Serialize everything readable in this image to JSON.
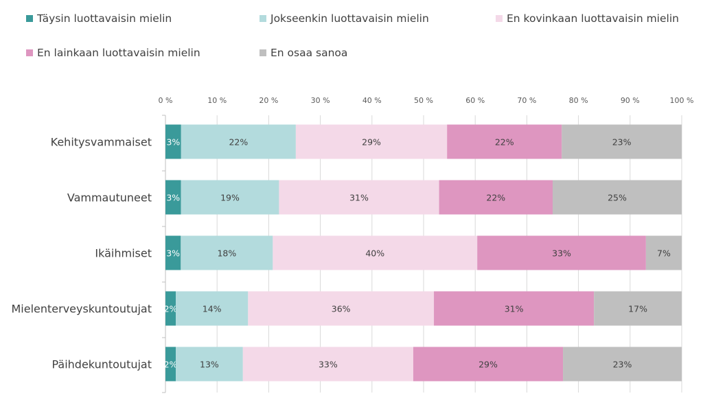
{
  "chart_data": {
    "type": "bar",
    "orientation": "horizontal",
    "stacked": "percent",
    "categories": [
      "Kehitysvammaiset",
      "Vammautuneet",
      "Ikäihmiset",
      "Mielenterveyskuntoutujat",
      "Päihdekuntoutujat"
    ],
    "series": [
      {
        "name": "Täysin luottavaisin mielin",
        "color": "#3a9a9a",
        "values": [
          3,
          3,
          3,
          2,
          2
        ],
        "labels": [
          "3%",
          "3%",
          "3%",
          "2%",
          "2%"
        ]
      },
      {
        "name": "Jokseenkin luottavaisin mielin",
        "color": "#b3dbdd",
        "values": [
          22,
          19,
          18,
          14,
          13
        ],
        "labels": [
          "22%",
          "19%",
          "18%",
          "14%",
          "13%"
        ]
      },
      {
        "name": "En kovinkaan luottavaisin mielin",
        "color": "#f4d9e8",
        "values": [
          29,
          31,
          40,
          36,
          33
        ],
        "labels": [
          "29%",
          "31%",
          "40%",
          "36%",
          "33%"
        ]
      },
      {
        "name": "En lainkaan luottavaisin mielin",
        "color": "#de96c0",
        "values": [
          22,
          22,
          33,
          31,
          29
        ],
        "labels": [
          "22%",
          "22%",
          "33%",
          "31%",
          "29%"
        ]
      },
      {
        "name": "En osaa sanoa",
        "color": "#bfbfbf",
        "values": [
          23,
          25,
          7,
          17,
          23
        ],
        "labels": [
          "23%",
          "25%",
          "7%",
          "17%",
          "23%"
        ]
      }
    ],
    "x_ticks": [
      "0 %",
      "10 %",
      "20 %",
      "30 %",
      "40 %",
      "50 %",
      "60 %",
      "70 %",
      "80 %",
      "90 %",
      "100 %"
    ],
    "xlim": [
      0,
      100
    ],
    "grid": true,
    "legend_position": "top"
  }
}
